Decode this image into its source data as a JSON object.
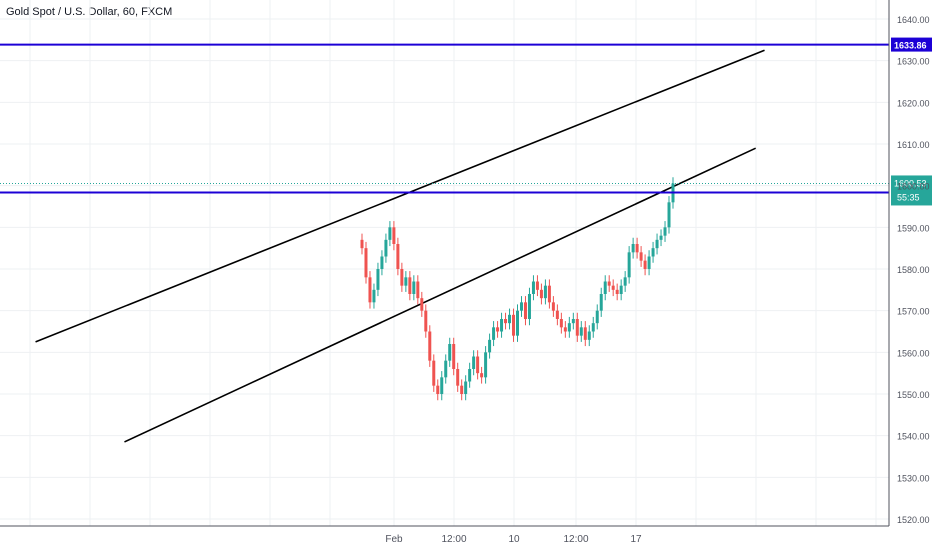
{
  "header": {
    "title": "Gold Spot / U.S. Dollar, 60, FXCM"
  },
  "chart_data": {
    "type": "candlestick",
    "title": "Gold Spot / U.S. Dollar, 60, FXCM",
    "ylim": [
      1518,
      1644
    ],
    "y_ticks": [
      1520,
      1530,
      1540,
      1550,
      1560,
      1570,
      1580,
      1590,
      1600,
      1610,
      1620,
      1630,
      1640
    ],
    "y_tick_labels": [
      "1520.00",
      "1530.00",
      "1540.00",
      "1550.00",
      "1560.00",
      "1570.00",
      "1580.00",
      "1590.00",
      "1600.00",
      "1610.00",
      "1620.00",
      "1630.00",
      "1640.00"
    ],
    "x_labels": [
      "Feb",
      "12:00",
      "10",
      "12:00",
      "17"
    ],
    "horizontal_levels": [
      {
        "value": 1633.86,
        "label": "1633.86",
        "color": "#1c00d6"
      },
      {
        "value": 1598.35,
        "label": "1598.35",
        "color": "#1c00d6"
      }
    ],
    "last_price": {
      "value": 1600.53,
      "label": "1600.53",
      "countdown": "55:35",
      "color": "#26a69a"
    },
    "trend_lines": [
      {
        "from": [
          0.04,
          1562.5
        ],
        "to": [
          0.86,
          1632.5
        ],
        "color": "#000000"
      },
      {
        "from": [
          0.14,
          1538.5
        ],
        "to": [
          0.85,
          1609.0
        ],
        "color": "#000000"
      }
    ],
    "up_color": "#26a69a",
    "down_color": "#ef5350",
    "closes": [
      1585,
      1578,
      1572,
      1575,
      1580,
      1583,
      1587,
      1590,
      1586,
      1580,
      1576,
      1578,
      1574,
      1577,
      1573,
      1570,
      1565,
      1558,
      1552,
      1550,
      1554,
      1558,
      1562,
      1556,
      1552,
      1550,
      1553,
      1556,
      1559,
      1555,
      1554,
      1560,
      1563,
      1566,
      1565,
      1568,
      1567,
      1569,
      1564,
      1570,
      1572,
      1568,
      1574,
      1577,
      1575,
      1573,
      1576,
      1572,
      1570,
      1568,
      1566,
      1565,
      1567,
      1568,
      1564,
      1566,
      1563,
      1565,
      1567,
      1570,
      1574,
      1577,
      1576,
      1575,
      1574,
      1576,
      1578,
      1584,
      1586,
      1584,
      1582,
      1580,
      1583,
      1585,
      1587,
      1588,
      1590,
      1596,
      1600.53
    ]
  }
}
